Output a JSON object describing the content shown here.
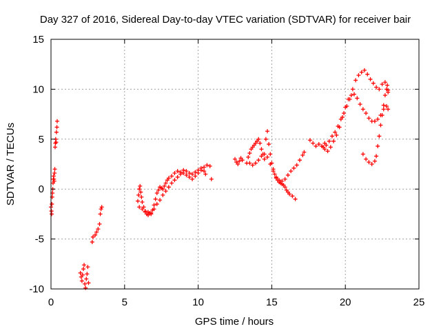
{
  "chart_data": {
    "type": "scatter",
    "title": "Day 327 of 2016, Sidereal Day-to-day VTEC variation (SDTVAR) for receiver bair",
    "xlabel": "GPS time / hours",
    "ylabel": "SDTVAR / TECUs",
    "xlim": [
      0,
      25
    ],
    "ylim": [
      -10,
      15
    ],
    "xticks": [
      0,
      5,
      10,
      15,
      20,
      25
    ],
    "yticks": [
      -10,
      -5,
      0,
      5,
      10,
      15
    ],
    "xtick_labels": [
      "0",
      "5",
      "10",
      "15",
      "20",
      "25"
    ],
    "ytick_labels": [
      "-10",
      "-5",
      "0",
      "5",
      "10",
      "15"
    ],
    "grid": true,
    "marker": "+",
    "color": "#ff0000",
    "series": [
      {
        "points": [
          [
            0.0,
            -1.8
          ],
          [
            0.03,
            -2.2
          ],
          [
            0.05,
            -2.5
          ],
          [
            0.06,
            -1.5
          ],
          [
            0.08,
            -0.8
          ],
          [
            0.1,
            -0.4
          ],
          [
            0.12,
            0.0
          ],
          [
            0.14,
            0.6
          ],
          [
            0.16,
            1.0
          ],
          [
            0.18,
            1.3
          ],
          [
            0.2,
            1.0
          ],
          [
            0.22,
            0.8
          ],
          [
            0.24,
            1.6
          ],
          [
            0.26,
            2.0
          ],
          [
            0.28,
            4.2
          ],
          [
            0.3,
            4.6
          ],
          [
            0.32,
            5.0
          ],
          [
            0.35,
            4.7
          ],
          [
            0.37,
            5.7
          ],
          [
            0.4,
            6.2
          ],
          [
            0.42,
            6.8
          ],
          [
            2.0,
            -8.4
          ],
          [
            2.05,
            -8.8
          ],
          [
            2.1,
            -9.2
          ],
          [
            2.15,
            -8.6
          ],
          [
            2.2,
            -8.0
          ],
          [
            2.25,
            -7.6
          ],
          [
            2.3,
            -9.5
          ],
          [
            2.35,
            -9.9
          ],
          [
            2.4,
            -9.0
          ],
          [
            2.45,
            -8.5
          ],
          [
            2.5,
            -7.8
          ],
          [
            2.55,
            -9.4
          ],
          [
            2.8,
            -5.3
          ],
          [
            2.85,
            -4.8
          ],
          [
            3.0,
            -4.6
          ],
          [
            3.1,
            -4.3
          ],
          [
            3.2,
            -4.0
          ],
          [
            3.3,
            -3.5
          ],
          [
            3.35,
            -2.5
          ],
          [
            3.4,
            -2.0
          ],
          [
            3.45,
            -1.8
          ],
          [
            5.9,
            -1.2
          ],
          [
            5.95,
            -0.6
          ],
          [
            6.0,
            0.0
          ],
          [
            6.05,
            0.3
          ],
          [
            6.1,
            -0.3
          ],
          [
            6.15,
            -0.8
          ],
          [
            6.2,
            -1.3
          ],
          [
            6.3,
            -1.8
          ],
          [
            6.4,
            -2.2
          ],
          [
            6.5,
            -2.5
          ],
          [
            6.6,
            -2.3
          ],
          [
            6.7,
            -2.4
          ],
          [
            6.8,
            -2.5
          ],
          [
            6.9,
            -2.1
          ],
          [
            7.0,
            -1.6
          ],
          [
            7.1,
            -1.0
          ],
          [
            7.2,
            -0.4
          ],
          [
            7.3,
            -0.1
          ],
          [
            7.4,
            0.2
          ],
          [
            7.5,
            0.1
          ],
          [
            7.6,
            0.0
          ],
          [
            7.7,
            0.3
          ],
          [
            7.8,
            0.6
          ],
          [
            7.9,
            0.9
          ],
          [
            8.0,
            1.1
          ],
          [
            8.2,
            1.3
          ],
          [
            8.4,
            1.6
          ],
          [
            8.6,
            1.8
          ],
          [
            8.8,
            1.7
          ],
          [
            9.0,
            1.9
          ],
          [
            9.2,
            1.8
          ],
          [
            9.4,
            1.6
          ],
          [
            9.6,
            1.5
          ],
          [
            9.8,
            1.7
          ],
          [
            10.0,
            1.9
          ],
          [
            10.2,
            2.1
          ],
          [
            10.4,
            1.8
          ],
          [
            10.5,
            1.5
          ],
          [
            6.0,
            -1.8
          ],
          [
            6.2,
            -2.0
          ],
          [
            6.4,
            -2.3
          ],
          [
            6.6,
            -2.6
          ],
          [
            6.8,
            -2.4
          ],
          [
            7.0,
            -2.0
          ],
          [
            7.2,
            -1.5
          ],
          [
            7.4,
            -1.1
          ],
          [
            7.6,
            -0.6
          ],
          [
            7.8,
            -0.2
          ],
          [
            8.0,
            0.2
          ],
          [
            8.2,
            0.6
          ],
          [
            8.4,
            0.9
          ],
          [
            8.6,
            1.2
          ],
          [
            8.8,
            1.5
          ],
          [
            9.0,
            1.6
          ],
          [
            9.2,
            1.4
          ],
          [
            9.4,
            1.2
          ],
          [
            9.6,
            1.0
          ],
          [
            9.8,
            1.3
          ],
          [
            10.0,
            1.6
          ],
          [
            10.2,
            1.9
          ],
          [
            10.4,
            2.2
          ],
          [
            10.6,
            2.4
          ],
          [
            10.8,
            2.3
          ],
          [
            10.9,
            1.0
          ],
          [
            12.5,
            3.0
          ],
          [
            12.6,
            2.7
          ],
          [
            12.7,
            2.5
          ],
          [
            12.8,
            2.8
          ],
          [
            12.9,
            3.1
          ],
          [
            13.0,
            2.9
          ],
          [
            13.3,
            2.6
          ],
          [
            13.4,
            3.2
          ],
          [
            13.5,
            3.6
          ],
          [
            13.6,
            4.0
          ],
          [
            13.7,
            4.2
          ],
          [
            13.8,
            4.4
          ],
          [
            13.9,
            4.6
          ],
          [
            14.0,
            4.8
          ],
          [
            14.1,
            5.0
          ],
          [
            14.2,
            4.6
          ],
          [
            14.3,
            4.0
          ],
          [
            14.4,
            3.5
          ],
          [
            14.5,
            3.0
          ],
          [
            14.6,
            5.0
          ],
          [
            14.7,
            5.8
          ],
          [
            14.8,
            4.5
          ],
          [
            14.9,
            3.5
          ],
          [
            15.0,
            2.6
          ],
          [
            15.1,
            2.0
          ],
          [
            15.2,
            1.5
          ],
          [
            15.3,
            1.1
          ],
          [
            15.4,
            0.9
          ],
          [
            15.5,
            0.7
          ],
          [
            15.6,
            0.6
          ],
          [
            15.7,
            0.5
          ],
          [
            15.8,
            0.4
          ],
          [
            15.9,
            0.2
          ],
          [
            16.0,
            -0.1
          ],
          [
            16.1,
            -0.3
          ],
          [
            16.2,
            -0.5
          ],
          [
            16.4,
            -0.7
          ],
          [
            16.6,
            -1.0
          ],
          [
            13.5,
            2.6
          ],
          [
            13.7,
            2.4
          ],
          [
            13.9,
            2.6
          ],
          [
            14.1,
            2.9
          ],
          [
            14.3,
            3.3
          ],
          [
            14.5,
            3.5
          ],
          [
            14.7,
            3.2
          ],
          [
            14.9,
            2.5
          ],
          [
            15.1,
            1.8
          ],
          [
            15.3,
            1.2
          ],
          [
            15.5,
            0.9
          ],
          [
            15.7,
            0.8
          ],
          [
            15.9,
            1.0
          ],
          [
            16.1,
            1.4
          ],
          [
            16.3,
            1.8
          ],
          [
            16.5,
            2.1
          ],
          [
            16.7,
            2.4
          ],
          [
            16.9,
            2.9
          ],
          [
            17.1,
            3.4
          ],
          [
            17.2,
            3.7
          ],
          [
            17.6,
            4.9
          ],
          [
            17.8,
            4.6
          ],
          [
            18.0,
            4.3
          ],
          [
            18.2,
            4.5
          ],
          [
            18.4,
            4.3
          ],
          [
            18.6,
            4.0
          ],
          [
            18.8,
            3.8
          ],
          [
            19.0,
            4.2
          ],
          [
            19.2,
            4.8
          ],
          [
            19.4,
            5.4
          ],
          [
            19.6,
            6.2
          ],
          [
            19.8,
            7.2
          ],
          [
            20.0,
            8.2
          ],
          [
            20.2,
            9.0
          ],
          [
            20.4,
            9.4
          ],
          [
            20.6,
            9.5
          ],
          [
            20.8,
            9.1
          ],
          [
            21.0,
            8.5
          ],
          [
            21.2,
            8.0
          ],
          [
            21.4,
            7.6
          ],
          [
            21.6,
            7.1
          ],
          [
            21.8,
            6.8
          ],
          [
            22.0,
            6.8
          ],
          [
            22.2,
            7.0
          ],
          [
            22.4,
            7.4
          ],
          [
            22.6,
            8.0
          ],
          [
            22.8,
            8.3
          ],
          [
            22.9,
            8.0
          ],
          [
            18.5,
            4.2
          ],
          [
            18.6,
            4.6
          ],
          [
            18.7,
            4.4
          ],
          [
            18.9,
            4.8
          ],
          [
            19.1,
            5.3
          ],
          [
            19.3,
            5.7
          ],
          [
            19.5,
            6.3
          ],
          [
            19.7,
            7.0
          ],
          [
            19.9,
            7.6
          ],
          [
            20.1,
            8.3
          ],
          [
            20.3,
            9.0
          ],
          [
            20.5,
            10.0
          ],
          [
            20.7,
            10.9
          ],
          [
            20.9,
            11.4
          ],
          [
            21.1,
            11.7
          ],
          [
            21.3,
            11.9
          ],
          [
            21.5,
            11.5
          ],
          [
            21.7,
            11.0
          ],
          [
            21.9,
            10.6
          ],
          [
            22.1,
            10.2
          ],
          [
            22.3,
            10.0
          ],
          [
            22.5,
            10.5
          ],
          [
            22.7,
            10.7
          ],
          [
            22.85,
            10.4
          ],
          [
            22.9,
            9.9
          ],
          [
            21.2,
            3.5
          ],
          [
            21.4,
            3.0
          ],
          [
            21.6,
            2.7
          ],
          [
            21.8,
            2.5
          ],
          [
            22.0,
            2.8
          ],
          [
            22.1,
            3.3
          ],
          [
            22.2,
            4.3
          ],
          [
            22.3,
            5.3
          ],
          [
            22.4,
            6.4
          ],
          [
            22.5,
            7.4
          ],
          [
            22.6,
            8.4
          ],
          [
            22.7,
            9.4
          ],
          [
            22.8,
            10.0
          ],
          [
            22.9,
            9.7
          ]
        ]
      }
    ]
  }
}
